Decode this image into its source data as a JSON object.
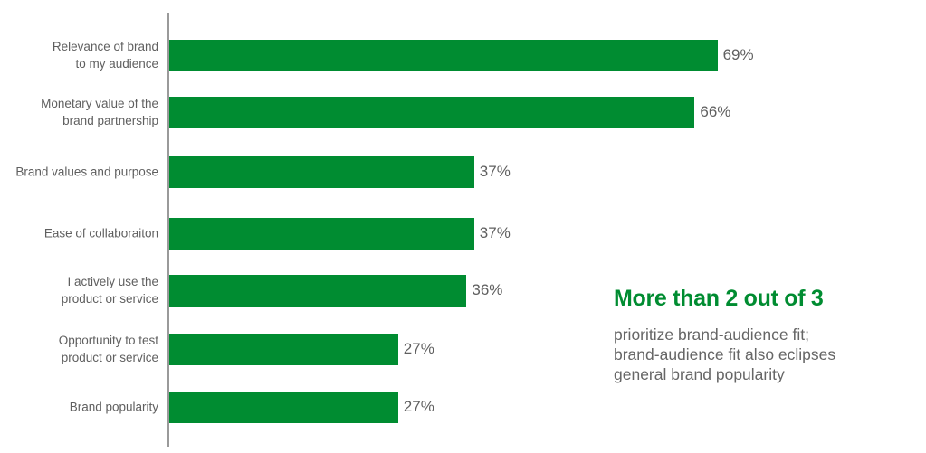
{
  "colors": {
    "bar": "#008c31",
    "headline": "#008c31"
  },
  "chart_data": {
    "type": "bar",
    "orientation": "horizontal",
    "categories": [
      "Relevance of brand\nto my audience",
      "Monetary value of the\nbrand partnership",
      "Brand values and purpose",
      "Ease of collaboraiton",
      "I actively use the\nproduct or service",
      "Opportunity to test\nproduct or service",
      "Brand popularity"
    ],
    "values": [
      69,
      66,
      37,
      37,
      36,
      27,
      27
    ],
    "data_labels": [
      "69%",
      "66%",
      "37%",
      "37%",
      "36%",
      "27%",
      "27%"
    ],
    "unit": "%",
    "grid": false,
    "legend": "none"
  },
  "callout": {
    "headline": "More than 2 out of 3",
    "body": "prioritize brand-audience fit;\nbrand-audience fit also eclipses\ngeneral brand popularity"
  }
}
